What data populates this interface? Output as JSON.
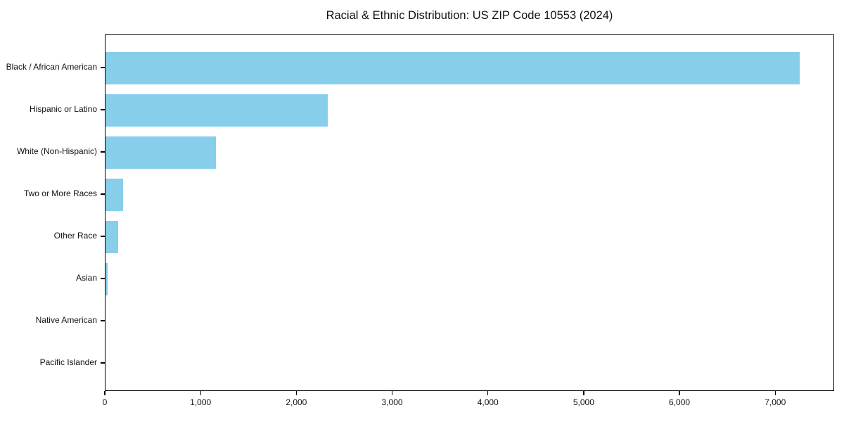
{
  "chart_data": {
    "type": "bar",
    "orientation": "horizontal",
    "title": "Racial & Ethnic Distribution: US ZIP Code 10553 (2024)",
    "categories": [
      "Black / African American",
      "Hispanic or Latino",
      "White (Non-Hispanic)",
      "Two or More Races",
      "Other Race",
      "Asian",
      "Native American",
      "Pacific Islander"
    ],
    "values": [
      7250,
      2320,
      1150,
      185,
      130,
      25,
      0,
      0
    ],
    "xlabel": "",
    "ylabel": "",
    "xlim": [
      0,
      7615
    ],
    "x_ticks": [
      0,
      1000,
      2000,
      3000,
      4000,
      5000,
      6000,
      7000
    ],
    "x_tick_labels": [
      "0",
      "1,000",
      "2,000",
      "3,000",
      "4,000",
      "5,000",
      "6,000",
      "7,000"
    ],
    "bar_color": "#87CEEB",
    "axis_color": "#000000",
    "text_color": "#111111",
    "background_color": "#ffffff",
    "grid": false,
    "legend": null
  }
}
